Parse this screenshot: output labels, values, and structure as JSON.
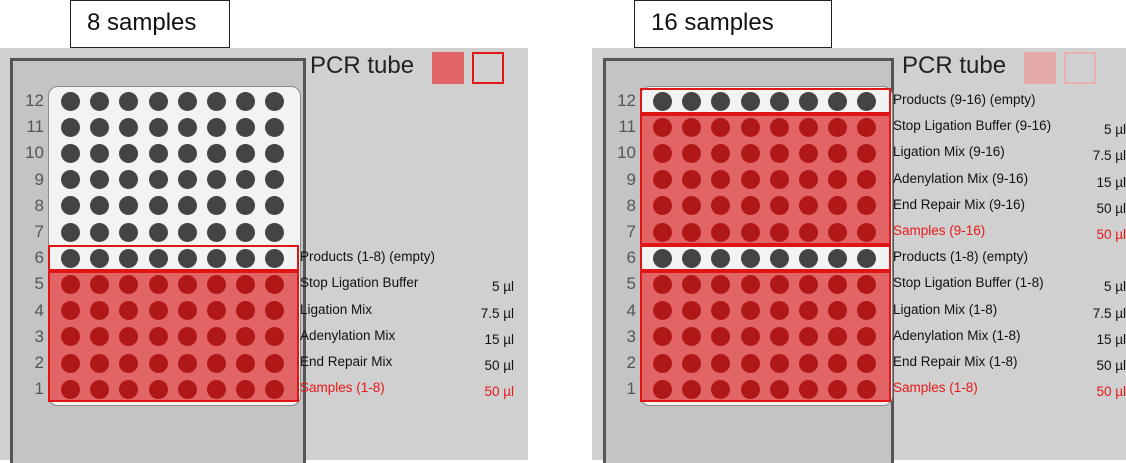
{
  "panels": [
    {
      "callout": "8 samples",
      "tube_title": "PCR tube",
      "row_numbers": [
        "12",
        "11",
        "10",
        "9",
        "8",
        "7",
        "6",
        "5",
        "4",
        "3",
        "2",
        "1"
      ],
      "filled_rows": [
        1,
        2,
        3,
        4,
        5
      ],
      "empty_outline_rows": [
        6
      ],
      "reagents": [
        {
          "row": 6,
          "label": "Products (1-8) (empty)",
          "volume": "",
          "highlight": false
        },
        {
          "row": 5,
          "label": "Stop Ligation Buffer",
          "volume": "5 µl",
          "highlight": false
        },
        {
          "row": 4,
          "label": "Ligation Mix",
          "volume": "7.5 µl",
          "highlight": false
        },
        {
          "row": 3,
          "label": "Adenylation Mix",
          "volume": "15 µl",
          "highlight": false
        },
        {
          "row": 2,
          "label": "End Repair Mix",
          "volume": "50 µl",
          "highlight": false
        },
        {
          "row": 1,
          "label": "Samples (1-8)",
          "volume": "50 µl",
          "highlight": true
        }
      ]
    },
    {
      "callout": "16 samples",
      "tube_title": "PCR tube",
      "row_numbers": [
        "12",
        "11",
        "10",
        "9",
        "8",
        "7",
        "6",
        "5",
        "4",
        "3",
        "2",
        "1"
      ],
      "filled_rows": [
        1,
        2,
        3,
        4,
        5,
        7,
        8,
        9,
        10,
        11
      ],
      "empty_outline_rows": [
        6,
        12
      ],
      "reagents": [
        {
          "row": 12,
          "label": "Products (9-16) (empty)",
          "volume": "",
          "highlight": false
        },
        {
          "row": 11,
          "label": "Stop Ligation Buffer (9-16)",
          "volume": "5 µl",
          "highlight": false
        },
        {
          "row": 10,
          "label": "Ligation Mix (9-16)",
          "volume": "7.5 µl",
          "highlight": false
        },
        {
          "row": 9,
          "label": "Adenylation Mix (9-16)",
          "volume": "15 µl",
          "highlight": false
        },
        {
          "row": 8,
          "label": "End Repair Mix (9-16)",
          "volume": "50 µl",
          "highlight": false
        },
        {
          "row": 7,
          "label": "Samples (9-16)",
          "volume": "50 µl",
          "highlight": true
        },
        {
          "row": 6,
          "label": "Products (1-8) (empty)",
          "volume": "",
          "highlight": false
        },
        {
          "row": 5,
          "label": "Stop Ligation Buffer (1-8)",
          "volume": "5 µl",
          "highlight": false
        },
        {
          "row": 4,
          "label": "Ligation Mix (1-8)",
          "volume": "7.5 µl",
          "highlight": false
        },
        {
          "row": 3,
          "label": "Adenylation Mix (1-8)",
          "volume": "15 µl",
          "highlight": false
        },
        {
          "row": 2,
          "label": "End Repair Mix (1-8)",
          "volume": "50 µl",
          "highlight": false
        },
        {
          "row": 1,
          "label": "Samples (1-8)",
          "volume": "50 µl",
          "highlight": true
        }
      ]
    }
  ],
  "colors": {
    "empty_well": "#444444",
    "filled_well": "#b01818",
    "fill_area": "#e36464",
    "outline": "#e01515",
    "highlight_text": "#e81818"
  }
}
